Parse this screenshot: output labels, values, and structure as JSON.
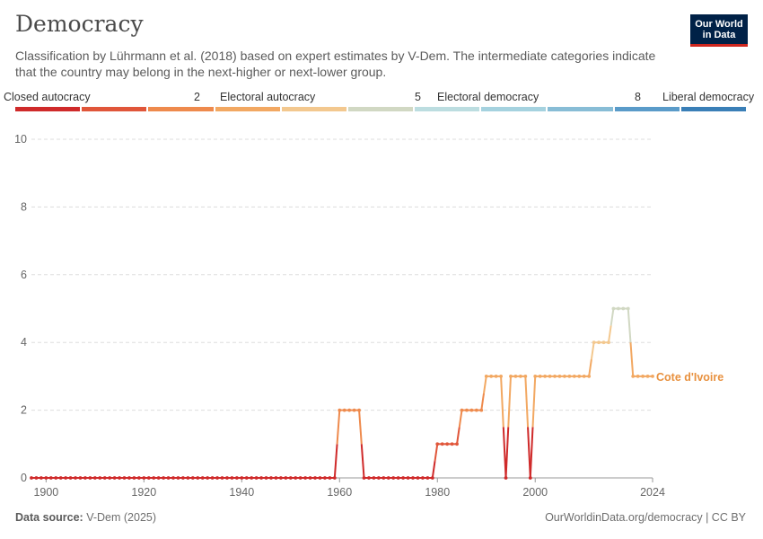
{
  "header": {
    "title": "Democracy",
    "subtitle": "Classification by Lührmann et al. (2018) based on expert estimates by V-Dem. The intermediate categories indicate that the country may belong in the next-higher or next-lower group.",
    "logo_line1": "Our World",
    "logo_line2": "in Data"
  },
  "legend": {
    "labels": [
      "Closed autocracy",
      "2",
      "Electoral autocracy",
      "5",
      "Electoral democracy",
      "8",
      "Liberal democracy"
    ],
    "colors": [
      "#cf2a2a",
      "#e0563a",
      "#ee8a4d",
      "#f2a862",
      "#f3c88f",
      "#d1d8c3",
      "#bcdde0",
      "#a5d2df",
      "#88bdd6",
      "#5a9bc9",
      "#3a7fb7"
    ]
  },
  "footer": {
    "source_label": "Data source:",
    "source_value": "V-Dem (2025)",
    "url": "OurWorldinData.org/democracy | CC BY"
  },
  "chart_data": {
    "type": "line",
    "title": "Democracy",
    "xlabel": "",
    "ylabel": "",
    "xlim": [
      1897,
      2024
    ],
    "ylim": [
      0,
      10
    ],
    "yticks": [
      0,
      2,
      4,
      6,
      8,
      10
    ],
    "xticks": [
      1900,
      1920,
      1940,
      1960,
      1980,
      2000,
      2024
    ],
    "grid": "horizontal dashed",
    "series": [
      {
        "name": "Cote d'Ivoire",
        "label_color": "#e8913f",
        "points": [
          [
            1897,
            0
          ],
          [
            1898,
            0
          ],
          [
            1899,
            0
          ],
          [
            1900,
            0
          ],
          [
            1901,
            0
          ],
          [
            1902,
            0
          ],
          [
            1903,
            0
          ],
          [
            1904,
            0
          ],
          [
            1905,
            0
          ],
          [
            1906,
            0
          ],
          [
            1907,
            0
          ],
          [
            1908,
            0
          ],
          [
            1909,
            0
          ],
          [
            1910,
            0
          ],
          [
            1911,
            0
          ],
          [
            1912,
            0
          ],
          [
            1913,
            0
          ],
          [
            1914,
            0
          ],
          [
            1915,
            0
          ],
          [
            1916,
            0
          ],
          [
            1917,
            0
          ],
          [
            1918,
            0
          ],
          [
            1919,
            0
          ],
          [
            1920,
            0
          ],
          [
            1921,
            0
          ],
          [
            1922,
            0
          ],
          [
            1923,
            0
          ],
          [
            1924,
            0
          ],
          [
            1925,
            0
          ],
          [
            1926,
            0
          ],
          [
            1927,
            0
          ],
          [
            1928,
            0
          ],
          [
            1929,
            0
          ],
          [
            1930,
            0
          ],
          [
            1931,
            0
          ],
          [
            1932,
            0
          ],
          [
            1933,
            0
          ],
          [
            1934,
            0
          ],
          [
            1935,
            0
          ],
          [
            1936,
            0
          ],
          [
            1937,
            0
          ],
          [
            1938,
            0
          ],
          [
            1939,
            0
          ],
          [
            1940,
            0
          ],
          [
            1941,
            0
          ],
          [
            1942,
            0
          ],
          [
            1943,
            0
          ],
          [
            1944,
            0
          ],
          [
            1945,
            0
          ],
          [
            1946,
            0
          ],
          [
            1947,
            0
          ],
          [
            1948,
            0
          ],
          [
            1949,
            0
          ],
          [
            1950,
            0
          ],
          [
            1951,
            0
          ],
          [
            1952,
            0
          ],
          [
            1953,
            0
          ],
          [
            1954,
            0
          ],
          [
            1955,
            0
          ],
          [
            1956,
            0
          ],
          [
            1957,
            0
          ],
          [
            1958,
            0
          ],
          [
            1959,
            0
          ],
          [
            1960,
            2
          ],
          [
            1961,
            2
          ],
          [
            1962,
            2
          ],
          [
            1963,
            2
          ],
          [
            1964,
            2
          ],
          [
            1965,
            0
          ],
          [
            1966,
            0
          ],
          [
            1967,
            0
          ],
          [
            1968,
            0
          ],
          [
            1969,
            0
          ],
          [
            1970,
            0
          ],
          [
            1971,
            0
          ],
          [
            1972,
            0
          ],
          [
            1973,
            0
          ],
          [
            1974,
            0
          ],
          [
            1975,
            0
          ],
          [
            1976,
            0
          ],
          [
            1977,
            0
          ],
          [
            1978,
            0
          ],
          [
            1979,
            0
          ],
          [
            1980,
            1
          ],
          [
            1981,
            1
          ],
          [
            1982,
            1
          ],
          [
            1983,
            1
          ],
          [
            1984,
            1
          ],
          [
            1985,
            2
          ],
          [
            1986,
            2
          ],
          [
            1987,
            2
          ],
          [
            1988,
            2
          ],
          [
            1989,
            2
          ],
          [
            1990,
            3
          ],
          [
            1991,
            3
          ],
          [
            1992,
            3
          ],
          [
            1993,
            3
          ],
          [
            1994,
            0
          ],
          [
            1995,
            3
          ],
          [
            1996,
            3
          ],
          [
            1997,
            3
          ],
          [
            1998,
            3
          ],
          [
            1999,
            0
          ],
          [
            2000,
            3
          ],
          [
            2001,
            3
          ],
          [
            2002,
            3
          ],
          [
            2003,
            3
          ],
          [
            2004,
            3
          ],
          [
            2005,
            3
          ],
          [
            2006,
            3
          ],
          [
            2007,
            3
          ],
          [
            2008,
            3
          ],
          [
            2009,
            3
          ],
          [
            2010,
            3
          ],
          [
            2011,
            3
          ],
          [
            2012,
            4
          ],
          [
            2013,
            4
          ],
          [
            2014,
            4
          ],
          [
            2015,
            4
          ],
          [
            2016,
            5
          ],
          [
            2017,
            5
          ],
          [
            2018,
            5
          ],
          [
            2019,
            5
          ],
          [
            2020,
            3
          ],
          [
            2021,
            3
          ],
          [
            2022,
            3
          ],
          [
            2023,
            3
          ],
          [
            2024,
            3
          ]
        ]
      }
    ]
  }
}
